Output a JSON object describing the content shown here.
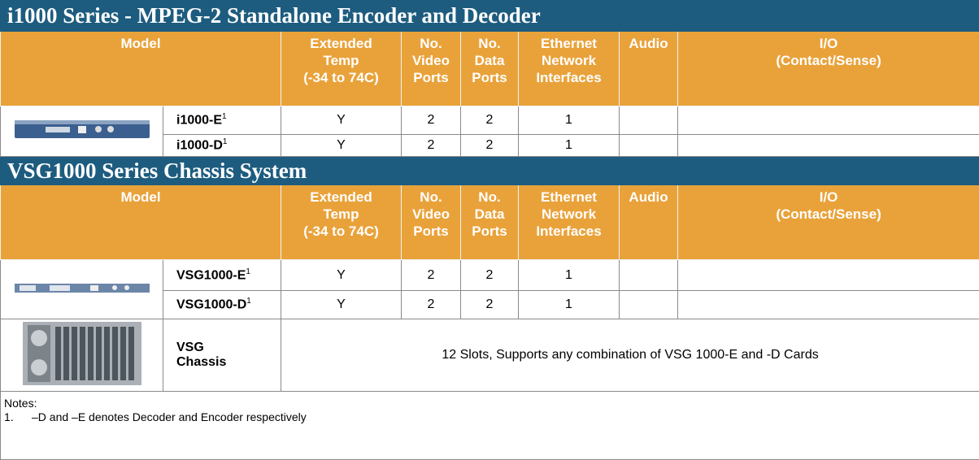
{
  "sections": [
    {
      "title": "i1000 Series - MPEG-2 Standalone Encoder and Decoder",
      "header": [
        [
          "Model"
        ],
        [
          "Extended",
          "Temp",
          "(-34 to 74C)"
        ],
        [
          "No.",
          "Video",
          "Ports"
        ],
        [
          "No.",
          "Data",
          "Ports"
        ],
        [
          "Ethernet",
          "Network",
          "Interfaces"
        ],
        [
          "Audio"
        ],
        [
          "I/O",
          "(Contact/Sense)"
        ]
      ],
      "rows": [
        {
          "model": "i1000-E",
          "footnote": "1",
          "cells": [
            "Y",
            "2",
            "2",
            "1"
          ]
        },
        {
          "model": "i1000-D",
          "footnote": "1",
          "cells": [
            "Y",
            "2",
            "2",
            "1"
          ]
        }
      ]
    },
    {
      "title": "VSG1000 Series Chassis System",
      "header": [
        [
          "Model"
        ],
        [
          "Extended",
          "Temp",
          "(-34 to 74C)"
        ],
        [
          "No.",
          "Video",
          "Ports"
        ],
        [
          "No.",
          "Data",
          "Ports"
        ],
        [
          "Ethernet",
          "Network",
          "Interfaces"
        ],
        [
          "Audio"
        ],
        [
          "I/O",
          "(Contact/Sense)"
        ]
      ],
      "rows": [
        {
          "model": "VSG1000-E",
          "footnote": "1",
          "cells": [
            "Y",
            "2",
            "2",
            "1"
          ]
        },
        {
          "model": "VSG1000-D",
          "footnote": "1",
          "cells": [
            "Y",
            "2",
            "2",
            "1"
          ]
        }
      ],
      "chassis": {
        "model": [
          "VSG",
          "Chassis"
        ],
        "description": "12 Slots, Supports any combination of VSG 1000-E and -D Cards"
      }
    }
  ],
  "notes": {
    "label": "Notes:",
    "items": [
      {
        "number": "1.",
        "text": "–D and –E denotes Decoder and Encoder respectively"
      }
    ]
  }
}
